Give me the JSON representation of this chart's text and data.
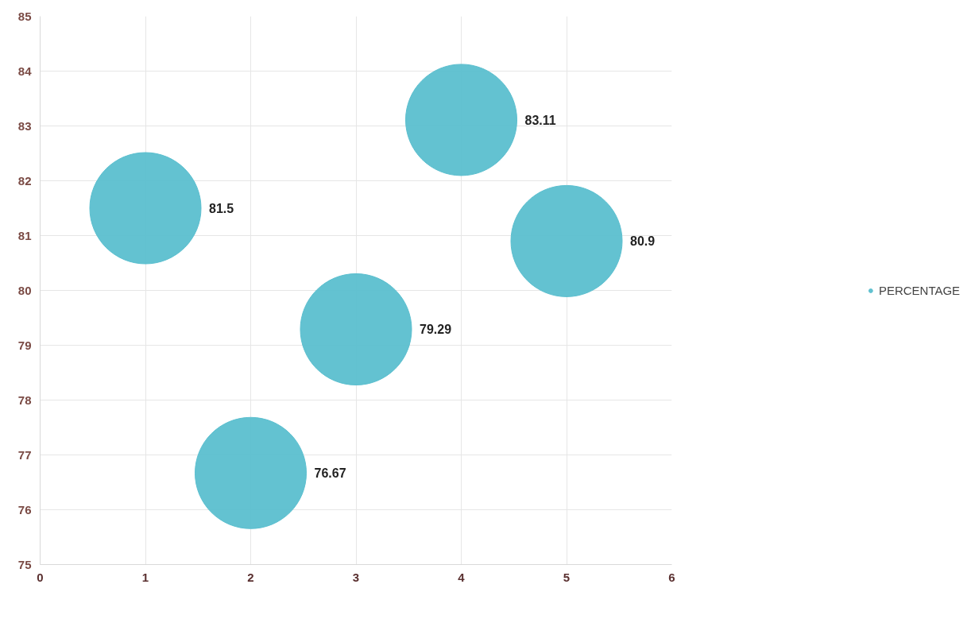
{
  "chart_data": {
    "type": "bubble",
    "x": [
      1,
      2,
      3,
      4,
      5
    ],
    "series": [
      {
        "name": "PERCENTAGE",
        "color": "#5bbfcf",
        "values": [
          81.5,
          76.67,
          79.29,
          83.11,
          80.9
        ],
        "sizes": [
          1,
          1,
          1,
          1,
          1
        ]
      }
    ],
    "xlim": [
      0,
      6
    ],
    "xticks": [
      0,
      1,
      2,
      3,
      4,
      5,
      6
    ],
    "ylim": [
      75,
      85
    ],
    "yticks": [
      75,
      76,
      77,
      78,
      79,
      80,
      81,
      82,
      83,
      84,
      85
    ],
    "grid": true,
    "legend": "right",
    "data_labels": true
  }
}
